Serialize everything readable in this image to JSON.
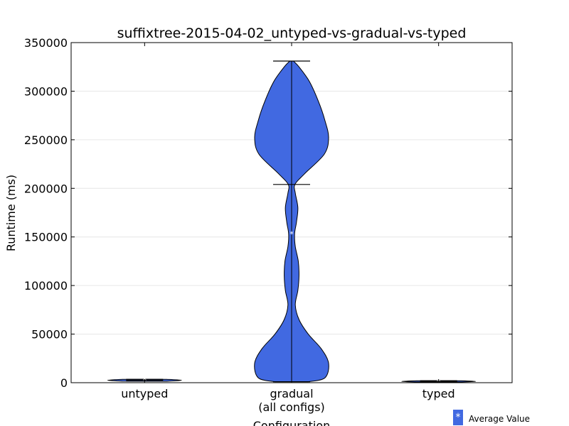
{
  "chart_data": {
    "type": "violin",
    "title": "suffixtree-2015-04-02_untyped-vs-gradual-vs-typed",
    "xlabel": "Configuration",
    "ylabel": "Runtime (ms)",
    "ylim": [
      0,
      350000
    ],
    "yticks": [
      0,
      50000,
      100000,
      150000,
      200000,
      250000,
      300000,
      350000
    ],
    "grid": "horizontal",
    "categories": [
      "untyped",
      "gradual\n(all configs)",
      "typed"
    ],
    "violins": [
      {
        "category": "untyped",
        "min": 1500,
        "max": 3500,
        "median": 2500,
        "mean": 2500,
        "profile": [
          [
            1500,
            0.6
          ],
          [
            2500,
            1.0
          ],
          [
            3500,
            0.6
          ]
        ]
      },
      {
        "category": "gradual\n(all configs)",
        "min": 1000,
        "max": 331000,
        "median": 204000,
        "mean": 153000,
        "profile": [
          [
            1000,
            0.45
          ],
          [
            5000,
            0.9
          ],
          [
            20000,
            1.0
          ],
          [
            35000,
            0.8
          ],
          [
            50000,
            0.45
          ],
          [
            65000,
            0.2
          ],
          [
            80000,
            0.1
          ],
          [
            95000,
            0.17
          ],
          [
            110000,
            0.2
          ],
          [
            125000,
            0.18
          ],
          [
            140000,
            0.1
          ],
          [
            153000,
            0.08
          ],
          [
            165000,
            0.13
          ],
          [
            180000,
            0.17
          ],
          [
            195000,
            0.1
          ],
          [
            204000,
            0.09
          ],
          [
            215000,
            0.35
          ],
          [
            235000,
            0.88
          ],
          [
            252000,
            1.0
          ],
          [
            270000,
            0.9
          ],
          [
            290000,
            0.72
          ],
          [
            310000,
            0.48
          ],
          [
            325000,
            0.2
          ],
          [
            331000,
            0.05
          ]
        ]
      },
      {
        "category": "typed",
        "min": 700,
        "max": 2000,
        "median": 1300,
        "mean": 1300,
        "profile": [
          [
            700,
            0.6
          ],
          [
            1300,
            1.0
          ],
          [
            2000,
            0.6
          ]
        ]
      }
    ],
    "colors": {
      "violin_fill": "#4169e1",
      "edge": "#000000",
      "grid": "#e6e6e6"
    },
    "legend": {
      "label": "Average Value",
      "position": "bottom-right",
      "marker": "*"
    }
  }
}
